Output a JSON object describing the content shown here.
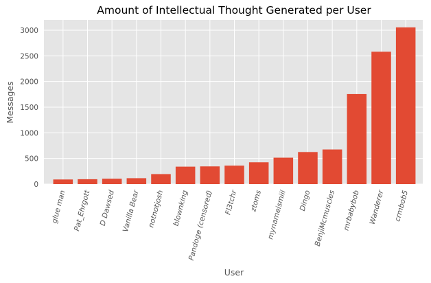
{
  "chart_data": {
    "type": "bar",
    "title": "Amount of Intellectual Thought Generated per User",
    "xlabel": "User",
    "ylabel": "Messages",
    "categories": [
      "glue man",
      "Pat_Ehrgott",
      "D Dawsed",
      "Vanilla Bear",
      "notnotjosh",
      "blownking",
      "Pandoge (censored)",
      "Fl3tchr",
      "ztoms",
      "mynameismiii",
      "Dingo",
      "BenjiMcmuscles",
      "mrbabybob",
      "Wanderer",
      "crmbob5"
    ],
    "values": [
      90,
      95,
      105,
      115,
      195,
      340,
      345,
      360,
      425,
      515,
      625,
      675,
      1755,
      2580,
      3055
    ],
    "ylim": [
      0,
      3200
    ],
    "yticks": [
      0,
      500,
      1000,
      1500,
      2000,
      2500,
      3000
    ],
    "grid": true,
    "colors": {
      "bar": "#E24A33",
      "plot_background": "#E5E5E5",
      "grid": "#FFFFFF"
    }
  }
}
